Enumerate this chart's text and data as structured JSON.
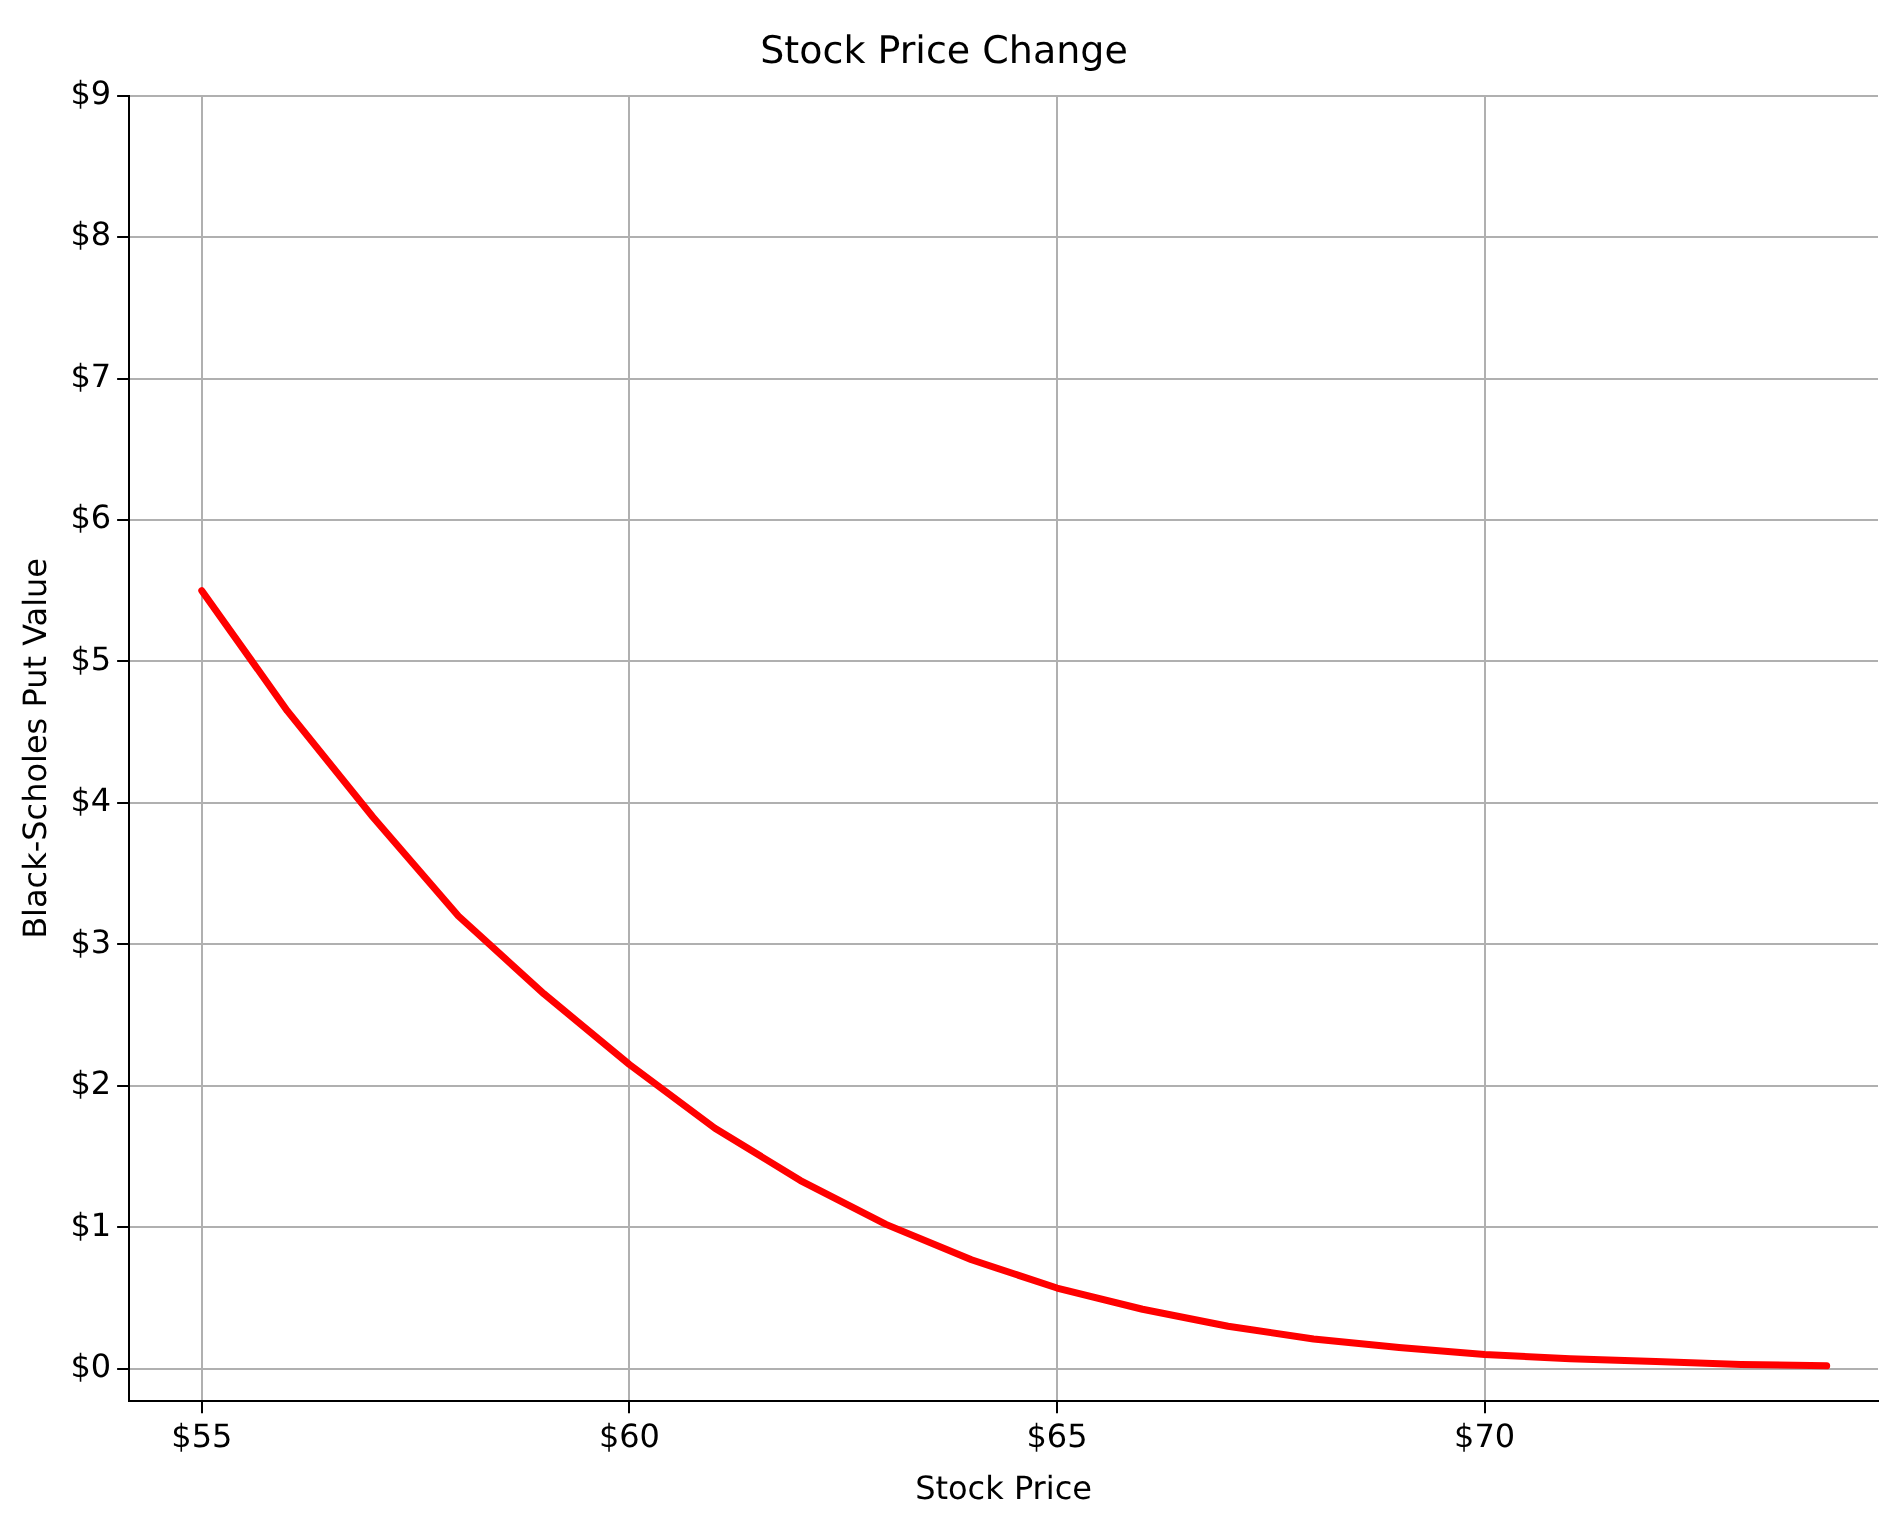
{
  "chart_data": {
    "type": "line",
    "title": "Stock Price Change",
    "xlabel": "Stock Price",
    "ylabel": "Black-Scholes Put Value",
    "x": [
      55,
      56,
      57,
      58,
      59,
      60,
      61,
      62,
      63,
      64,
      65,
      66,
      67,
      68,
      69,
      70,
      71,
      72,
      73,
      74
    ],
    "series": [
      {
        "color": "#ff0000",
        "values": [
          5.5,
          4.65,
          3.9,
          3.2,
          2.65,
          2.15,
          1.7,
          1.33,
          1.02,
          0.77,
          0.57,
          0.42,
          0.3,
          0.21,
          0.15,
          0.1,
          0.07,
          0.05,
          0.03,
          0.02
        ]
      }
    ],
    "xlim": [
      54.15,
      74.6
    ],
    "ylim": [
      -0.23,
      9
    ],
    "xticks": [
      {
        "value": 55,
        "label": "$55"
      },
      {
        "value": 60,
        "label": "$60"
      },
      {
        "value": 65,
        "label": "$65"
      },
      {
        "value": 70,
        "label": "$70"
      }
    ],
    "yticks": [
      {
        "value": 0,
        "label": "$0"
      },
      {
        "value": 1,
        "label": "$1"
      },
      {
        "value": 2,
        "label": "$2"
      },
      {
        "value": 3,
        "label": "$3"
      },
      {
        "value": 4,
        "label": "$4"
      },
      {
        "value": 5,
        "label": "$5"
      },
      {
        "value": 6,
        "label": "$6"
      },
      {
        "value": 7,
        "label": "$7"
      },
      {
        "value": 8,
        "label": "$8"
      },
      {
        "value": 9,
        "label": "$9"
      }
    ],
    "grid": true,
    "legend": false,
    "marker": "none",
    "line_style": "solid"
  }
}
